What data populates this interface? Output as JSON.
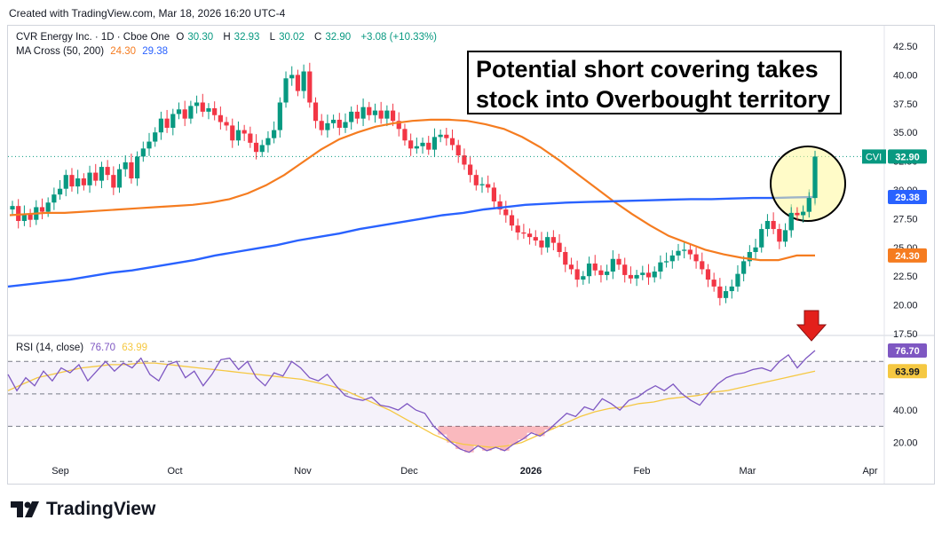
{
  "header": {
    "created": "Created with TradingView.com, Mar 18, 2026 16:20 UTC-4"
  },
  "legend": {
    "symbol": "CVR Energy Inc. · 1D · Cboe One",
    "o_label": "O",
    "o": "30.30",
    "h_label": "H",
    "h": "32.93",
    "l_label": "L",
    "l": "30.02",
    "c_label": "C",
    "c": "32.90",
    "change": "+3.08 (+10.33%)",
    "ma_title": "MA Cross (50, 200)",
    "ma_fast": "24.30",
    "ma_slow": "29.38",
    "rsi_title": "RSI (14, close)",
    "rsi_val": "76.70",
    "rsi_ma": "63.99"
  },
  "callout": {
    "line1": "Potential short covering takes",
    "line2": "stock into Overbought territory"
  },
  "logo": {
    "text": "TradingView"
  },
  "colors": {
    "up": "#089981",
    "down": "#f23645",
    "ma_fast": "#f57c20",
    "ma_slow": "#2962ff",
    "rsi": "#7e57c2",
    "rsi_ma": "#f5c842",
    "arrow": "#e3201b",
    "highlight": "#fff79a"
  },
  "chart_data": [
    {
      "type": "candlestick",
      "title": "CVR Energy Inc. · 1D · Cboe One",
      "ylim": [
        17.5,
        42.5
      ],
      "y_ticks": [
        "42.50",
        "40.00",
        "37.50",
        "35.00",
        "32.50",
        "30.00",
        "27.50",
        "25.00",
        "22.50",
        "20.00",
        "17.50"
      ],
      "x_ticks": [
        "Sep",
        "Oct",
        "Nov",
        "Dec",
        "2026",
        "Feb",
        "Mar",
        "Apr"
      ],
      "price_labels": [
        {
          "name": "CVI",
          "value": "32.90"
        },
        {
          "name": "MA50",
          "value": "24.30"
        },
        {
          "name": "MA200",
          "value": "29.38"
        }
      ],
      "closes": [
        28.6,
        27.3,
        27.9,
        27.4,
        28.5,
        28.1,
        28.9,
        29.6,
        30.1,
        31.3,
        30.3,
        31.0,
        30.4,
        31.5,
        30.8,
        32.0,
        31.3,
        30.2,
        31.8,
        32.4,
        31.0,
        32.9,
        33.6,
        34.2,
        35.0,
        36.2,
        35.4,
        36.6,
        37.0,
        36.2,
        37.3,
        37.6,
        36.8,
        37.1,
        36.5,
        35.9,
        35.6,
        34.3,
        35.2,
        34.9,
        34.1,
        33.3,
        33.9,
        34.5,
        35.2,
        37.6,
        39.7,
        40.0,
        38.6,
        40.3,
        37.6,
        36.0,
        35.2,
        35.8,
        36.1,
        35.4,
        35.9,
        36.8,
        36.2,
        37.2,
        36.5,
        36.9,
        36.2,
        36.9,
        36.0,
        35.3,
        34.3,
        33.6,
        33.8,
        34.1,
        33.5,
        34.6,
        34.8,
        34.5,
        33.9,
        33.0,
        32.2,
        31.3,
        30.4,
        30.5,
        30.2,
        29.0,
        28.3,
        27.8,
        26.9,
        26.3,
        26.2,
        25.9,
        25.6,
        25.0,
        25.9,
        25.4,
        24.6,
        23.5,
        23.1,
        22.2,
        22.5,
        23.6,
        23.0,
        22.6,
        22.9,
        24.0,
        23.5,
        22.6,
        22.3,
        22.6,
        22.8,
        22.4,
        22.9,
        23.7,
        23.8,
        24.3,
        24.7,
        24.8,
        24.4,
        23.8,
        23.1,
        22.2,
        21.6,
        20.6,
        21.2,
        21.6,
        22.7,
        23.8,
        24.6,
        25.0,
        26.6,
        27.3,
        26.6,
        25.5,
        26.5,
        28.0,
        27.8,
        28.1,
        29.3,
        32.9
      ],
      "ma50": [
        27.8,
        27.9,
        28.0,
        28.0,
        28.1,
        28.2,
        28.3,
        28.4,
        28.5,
        28.6,
        28.7,
        28.9,
        29.2,
        29.7,
        30.4,
        31.3,
        32.4,
        33.5,
        34.4,
        35.0,
        35.5,
        35.8,
        36.0,
        36.1,
        36.1,
        36.0,
        35.7,
        35.3,
        34.6,
        33.7,
        32.6,
        31.4,
        30.2,
        29.0,
        27.9,
        26.9,
        26.0,
        25.4,
        24.8,
        24.4,
        24.1,
        23.9,
        23.9,
        24.3,
        24.3
      ],
      "ma200": [
        21.6,
        21.8,
        22.0,
        22.2,
        22.5,
        22.8,
        23.0,
        23.3,
        23.6,
        23.9,
        24.3,
        24.6,
        24.9,
        25.2,
        25.6,
        25.9,
        26.2,
        26.6,
        26.9,
        27.2,
        27.5,
        27.8,
        28.0,
        28.3,
        28.5,
        28.7,
        28.8,
        28.9,
        28.95,
        29.0,
        29.05,
        29.1,
        29.15,
        29.2,
        29.2,
        29.25,
        29.3,
        29.3,
        29.35,
        29.38
      ]
    },
    {
      "type": "line",
      "title": "RSI (14, close)",
      "ylim": [
        10,
        86
      ],
      "y_ticks": [
        "20.00",
        "40.00"
      ],
      "bands": [
        30,
        50,
        70
      ],
      "series": [
        {
          "name": "RSI",
          "values": [
            62,
            52,
            60,
            55,
            64,
            58,
            66,
            63,
            68,
            58,
            64,
            70,
            64,
            69,
            66,
            72,
            62,
            58,
            68,
            70,
            60,
            64,
            55,
            62,
            71,
            72,
            65,
            70,
            60,
            55,
            63,
            61,
            70,
            66,
            60,
            58,
            62,
            55,
            49,
            47,
            46,
            48,
            43,
            42,
            40,
            44,
            40,
            38,
            30,
            25,
            20,
            16,
            14,
            18,
            15,
            17,
            15,
            19,
            22,
            26,
            24,
            28,
            33,
            38,
            36,
            42,
            40,
            47,
            44,
            40,
            46,
            48,
            52,
            55,
            52,
            56,
            50,
            46,
            43,
            50,
            56,
            60,
            62,
            63,
            65,
            66,
            64,
            70,
            74,
            66,
            72,
            76.7
          ]
        },
        {
          "name": "MA",
          "values": [
            52,
            56,
            60,
            62,
            64,
            66,
            67,
            68,
            68,
            69,
            69,
            68,
            67,
            66,
            65,
            64,
            63,
            62,
            61,
            60,
            59,
            57,
            55,
            52,
            48,
            44,
            40,
            35,
            30,
            25,
            21,
            19,
            18,
            17,
            18,
            20,
            24,
            28,
            32,
            36,
            39,
            41,
            42,
            44,
            45,
            47,
            48,
            49,
            51,
            52,
            54,
            56,
            58,
            60,
            62,
            63.99
          ]
        }
      ]
    }
  ]
}
